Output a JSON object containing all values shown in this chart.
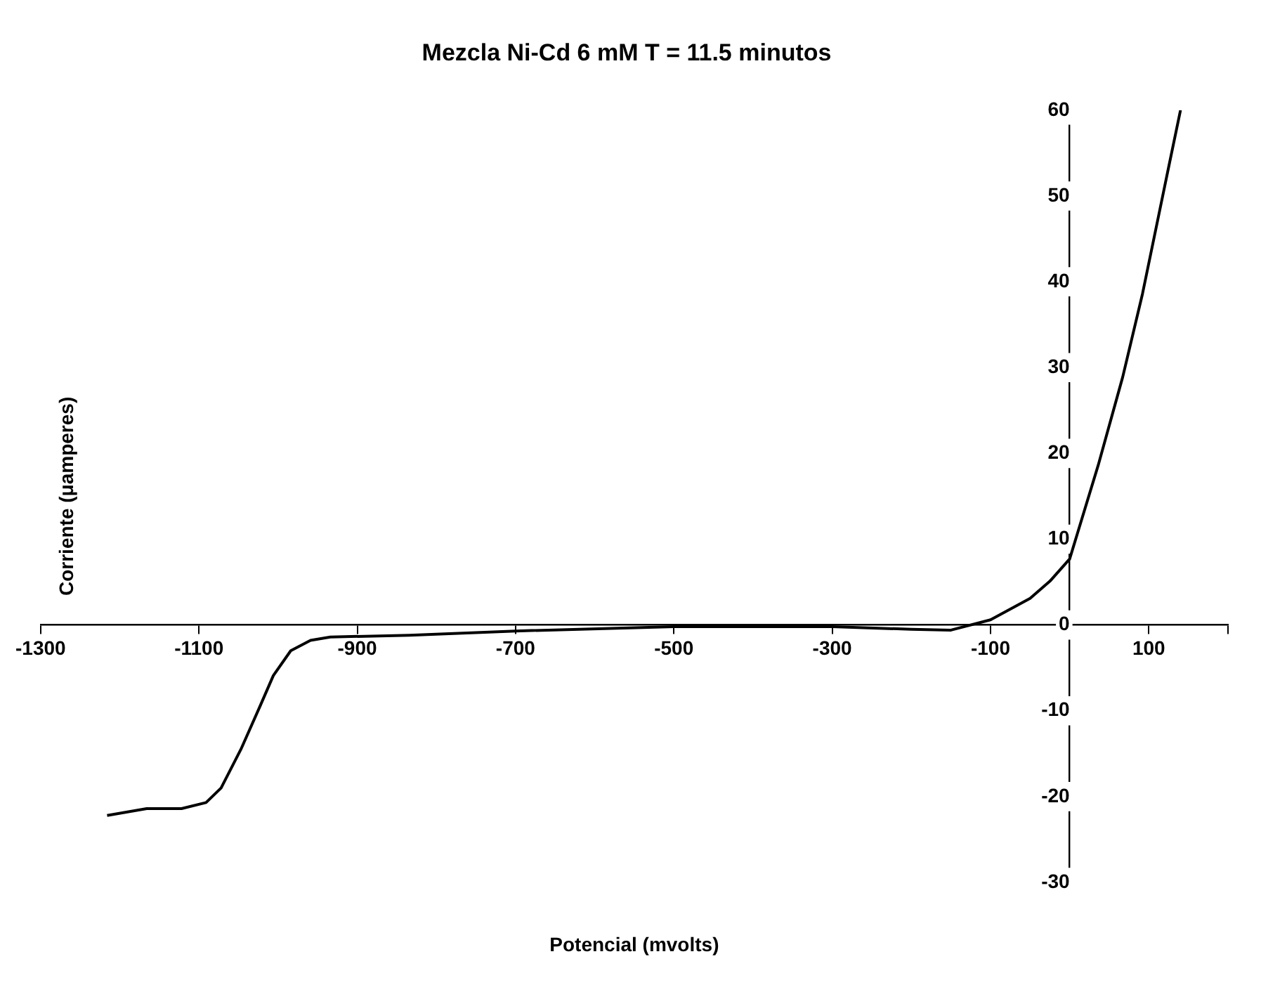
{
  "chart_data": {
    "type": "line",
    "title": "Mezcla Ni-Cd 6 mM T = 11.5 minutos",
    "xlabel": "Potencial (mvolts)",
    "ylabel": "Corriente (μamperes)",
    "x": [
      -1216,
      -1166,
      -1122,
      -1091,
      -1072,
      -1047,
      -1022,
      -1006,
      -984,
      -959,
      -934,
      -834,
      -700,
      -500,
      -300,
      -200,
      -150,
      -100,
      -50,
      -25,
      0,
      36,
      67,
      92,
      124,
      140
    ],
    "series": [
      {
        "color": "#000000",
        "values": [
          -22.2,
          -21.4,
          -21.4,
          -20.7,
          -19,
          -14.5,
          -9.3,
          -5.9,
          -3,
          -1.8,
          -1.4,
          -1.2,
          -0.7,
          -0.2,
          -0.2,
          -0.5,
          -0.6,
          0.6,
          3.1,
          5.1,
          7.7,
          18.6,
          28.9,
          38.6,
          52.9,
          60
        ]
      }
    ],
    "xlim": [
      -1300,
      200
    ],
    "xticks": [
      -1300,
      -1100,
      -900,
      -700,
      -500,
      -300,
      -100,
      100,
      {
        "value": 200,
        "label": null
      }
    ],
    "ylim": [
      -30,
      60
    ],
    "yticks": [
      -30,
      -20,
      -10,
      0,
      10,
      20,
      30,
      40,
      50,
      60
    ],
    "grid": false,
    "legend": false,
    "marker": "none",
    "line_style": "solid"
  }
}
